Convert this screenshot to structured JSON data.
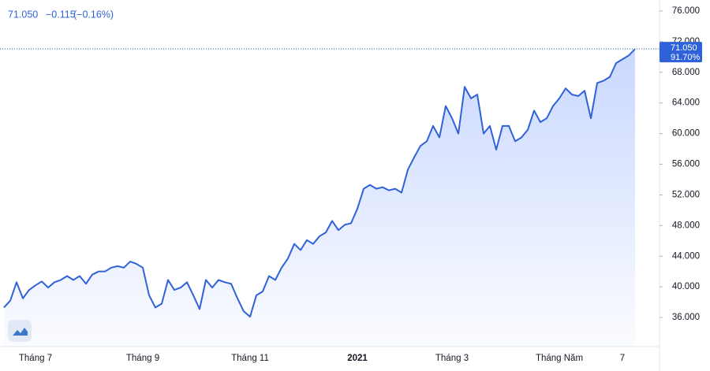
{
  "chart_data": {
    "type": "area",
    "legend_value": "71.050",
    "legend_change": "−0.115",
    "legend_change_pct": "(−0.16%)",
    "price_tag": "71.050",
    "percent_tag": "91.70%",
    "color": "#2f62d8",
    "categories": [
      null,
      null,
      null,
      null,
      null,
      "Tháng 7",
      null,
      null,
      null,
      null,
      null,
      null,
      null,
      null,
      null,
      null,
      null,
      null,
      null,
      null,
      null,
      null,
      "Tháng 9",
      null,
      null,
      null,
      null,
      null,
      null,
      null,
      null,
      null,
      null,
      null,
      null,
      null,
      null,
      null,
      null,
      "Tháng 11",
      null,
      null,
      null,
      null,
      null,
      null,
      null,
      null,
      null,
      null,
      null,
      null,
      null,
      null,
      null,
      null,
      "2021",
      null,
      null,
      null,
      null,
      null,
      null,
      null,
      null,
      null,
      null,
      null,
      null,
      null,
      null,
      "Tháng 3",
      null,
      null,
      null,
      null,
      null,
      null,
      null,
      null,
      null,
      null,
      null,
      null,
      null,
      null,
      null,
      null,
      "Tháng Năm",
      null,
      null,
      null,
      null,
      null,
      null,
      null,
      null,
      null,
      "7",
      null,
      null
    ],
    "values": [
      37.3,
      38.2,
      40.6,
      38.5,
      39.6,
      40.2,
      40.7,
      39.9,
      40.6,
      40.9,
      41.4,
      40.9,
      41.4,
      40.4,
      41.6,
      42.0,
      42.0,
      42.5,
      42.7,
      42.5,
      43.3,
      43.0,
      42.5,
      38.9,
      37.3,
      37.8,
      40.9,
      39.6,
      39.9,
      40.6,
      38.9,
      37.1,
      40.9,
      39.9,
      40.9,
      40.6,
      40.4,
      38.5,
      36.8,
      36.1,
      38.9,
      39.4,
      41.4,
      40.9,
      42.5,
      43.7,
      45.6,
      44.8,
      46.1,
      45.6,
      46.6,
      47.1,
      48.6,
      47.4,
      48.1,
      48.3,
      50.2,
      52.8,
      53.3,
      52.8,
      53.0,
      52.6,
      52.8,
      52.3,
      55.3,
      56.9,
      58.4,
      59.0,
      61.0,
      59.5,
      63.6,
      62.0,
      60.0,
      66.1,
      64.6,
      65.1,
      60.0,
      61.0,
      57.9,
      61.0,
      61.0,
      59.0,
      59.5,
      60.5,
      63.0,
      61.5,
      62.0,
      63.6,
      64.6,
      65.9,
      65.1,
      64.9,
      65.6,
      62.0,
      66.6,
      66.9,
      67.4,
      69.2,
      69.7,
      70.2,
      71.05
    ],
    "ylim": [
      32.2,
      77.44
    ],
    "yticks": [
      {
        "value": 36,
        "label": "36.000"
      },
      {
        "value": 40,
        "label": "40.000"
      },
      {
        "value": 44,
        "label": "44.000"
      },
      {
        "value": 48,
        "label": "48.000"
      },
      {
        "value": 52,
        "label": "52.000"
      },
      {
        "value": 56,
        "label": "56.000"
      },
      {
        "value": 60,
        "label": "60.000"
      },
      {
        "value": 64,
        "label": "64.000"
      },
      {
        "value": 68,
        "label": "68.000"
      },
      {
        "value": 72,
        "label": "72.000"
      },
      {
        "value": 76,
        "label": "76.000"
      }
    ]
  }
}
